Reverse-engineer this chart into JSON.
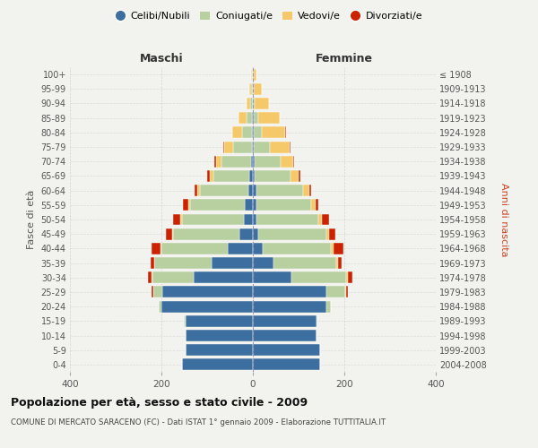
{
  "age_groups": [
    "0-4",
    "5-9",
    "10-14",
    "15-19",
    "20-24",
    "25-29",
    "30-34",
    "35-39",
    "40-44",
    "45-49",
    "50-54",
    "55-59",
    "60-64",
    "65-69",
    "70-74",
    "75-79",
    "80-84",
    "85-89",
    "90-94",
    "95-99",
    "100+"
  ],
  "birth_years": [
    "2004-2008",
    "1999-2003",
    "1994-1998",
    "1989-1993",
    "1984-1988",
    "1979-1983",
    "1974-1978",
    "1969-1973",
    "1964-1968",
    "1959-1963",
    "1954-1958",
    "1949-1953",
    "1944-1948",
    "1939-1943",
    "1934-1938",
    "1929-1933",
    "1924-1928",
    "1919-1923",
    "1914-1918",
    "1909-1913",
    "≤ 1908"
  ],
  "males": {
    "celibi": [
      155,
      148,
      148,
      148,
      200,
      198,
      130,
      90,
      55,
      30,
      20,
      18,
      10,
      7,
      4,
      2,
      1,
      1,
      0,
      0,
      0
    ],
    "coniugati": [
      0,
      0,
      0,
      2,
      5,
      20,
      90,
      125,
      145,
      145,
      135,
      120,
      105,
      80,
      65,
      42,
      22,
      12,
      6,
      3,
      1
    ],
    "vedovi": [
      0,
      0,
      0,
      0,
      0,
      0,
      1,
      1,
      2,
      2,
      3,
      4,
      6,
      8,
      12,
      18,
      22,
      18,
      8,
      4,
      2
    ],
    "divorziati": [
      0,
      0,
      0,
      0,
      1,
      3,
      8,
      8,
      20,
      14,
      16,
      10,
      6,
      5,
      4,
      2,
      1,
      0,
      0,
      0,
      0
    ]
  },
  "females": {
    "nubili": [
      148,
      148,
      140,
      140,
      160,
      160,
      85,
      45,
      22,
      12,
      8,
      8,
      7,
      4,
      3,
      2,
      1,
      1,
      0,
      0,
      0
    ],
    "coniugate": [
      0,
      0,
      0,
      2,
      10,
      42,
      118,
      138,
      148,
      148,
      135,
      120,
      102,
      78,
      58,
      36,
      18,
      10,
      4,
      2,
      1
    ],
    "vedove": [
      0,
      0,
      0,
      0,
      0,
      2,
      4,
      4,
      6,
      6,
      8,
      10,
      14,
      18,
      28,
      42,
      52,
      48,
      32,
      18,
      7
    ],
    "divorziate": [
      0,
      0,
      0,
      0,
      1,
      4,
      10,
      7,
      22,
      14,
      16,
      6,
      5,
      3,
      2,
      2,
      1,
      0,
      0,
      0,
      0
    ]
  },
  "colors": {
    "celibi": "#3d6ea0",
    "coniugati": "#b8cfa0",
    "vedovi": "#f5c96a",
    "divorziati": "#cc2200"
  },
  "legend_labels": [
    "Celibi/Nubili",
    "Coniugati/e",
    "Vedovi/e",
    "Divorziati/e"
  ],
  "title1": "Popolazione per età, sesso e stato civile - 2009",
  "title2": "COMUNE DI MERCATO SARACENO (FC) - Dati ISTAT 1° gennaio 2009 - Elaborazione TUTTITALIA.IT",
  "xlabel_left": "Maschi",
  "xlabel_right": "Femmine",
  "ylabel_left": "Fasce di età",
  "ylabel_right": "Anni di nascita",
  "xlim": 400,
  "bg_color": "#f2f2ee"
}
